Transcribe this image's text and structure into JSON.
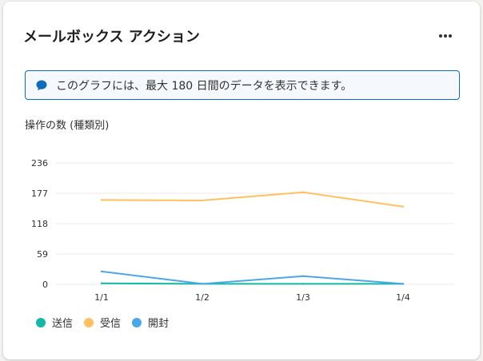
{
  "card": {
    "title": "メールボックス アクション",
    "more_label": "•••"
  },
  "info": {
    "icon": "chat-bubble-icon",
    "text": "このグラフには、最大 180 日間のデータを表示できます。"
  },
  "chart": {
    "subtitle": "操作の数 (種類別)"
  },
  "colors": {
    "accent": "#0f6cbd",
    "sent": "#13b8a6",
    "received": "#ffc160",
    "opened": "#4aa8e8",
    "grid": "#edebe9"
  },
  "chart_data": {
    "type": "line",
    "categories": [
      "1/1",
      "1/2",
      "1/3",
      "1/4"
    ],
    "ylim": [
      0,
      236
    ],
    "yticks": [
      0,
      59,
      118,
      177,
      236
    ],
    "grid": true,
    "legend_position": "bottom-left",
    "series": [
      {
        "name": "送信",
        "color": "#13b8a6",
        "values": [
          2,
          1,
          1,
          1
        ]
      },
      {
        "name": "受信",
        "color": "#ffc160",
        "values": [
          164,
          163,
          179,
          151
        ]
      },
      {
        "name": "開封",
        "color": "#4aa8e8",
        "values": [
          25,
          1,
          16,
          1
        ]
      }
    ]
  }
}
